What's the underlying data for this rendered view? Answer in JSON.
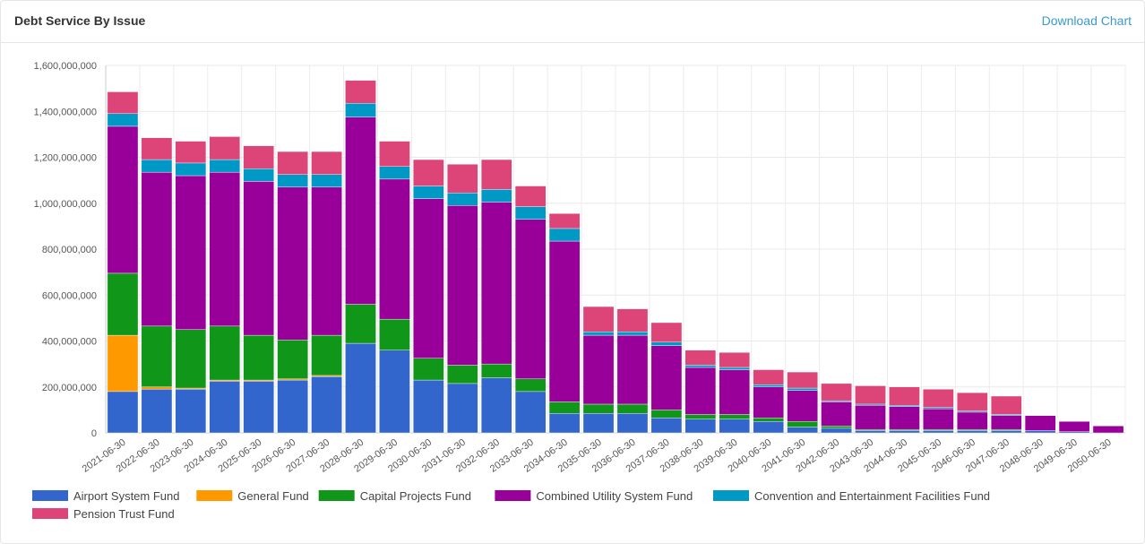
{
  "header": {
    "title": "Debt Service By Issue",
    "download_label": "Download Chart"
  },
  "chart_data": {
    "type": "bar",
    "stacked": true,
    "title": "Debt Service By Issue",
    "xlabel": "",
    "ylabel": "",
    "ylim": [
      0,
      1600000000
    ],
    "yticks": [
      0,
      200000000,
      400000000,
      600000000,
      800000000,
      1000000000,
      1200000000,
      1400000000,
      1600000000
    ],
    "ytick_labels": [
      "0",
      "200,000,000",
      "400,000,000",
      "600,000,000",
      "800,000,000",
      "1,000,000,000",
      "1,200,000,000",
      "1,400,000,000",
      "1,600,000,000"
    ],
    "grid": true,
    "legend_position": "bottom",
    "categories": [
      "2021-06-30",
      "2022-06-30",
      "2023-06-30",
      "2024-06-30",
      "2025-06-30",
      "2026-06-30",
      "2027-06-30",
      "2028-06-30",
      "2029-06-30",
      "2030-06-30",
      "2031-06-30",
      "2032-06-30",
      "2033-06-30",
      "2034-06-30",
      "2035-06-30",
      "2036-06-30",
      "2037-06-30",
      "2038-06-30",
      "2039-06-30",
      "2040-06-30",
      "2041-06-30",
      "2042-06-30",
      "2043-06-30",
      "2044-06-30",
      "2045-06-30",
      "2046-06-30",
      "2047-06-30",
      "2048-06-30",
      "2049-06-30",
      "2050-06-30"
    ],
    "series": [
      {
        "name": "Airport System Fund",
        "color": "#3366cc",
        "values": [
          180000000,
          190000000,
          190000000,
          225000000,
          225000000,
          230000000,
          245000000,
          390000000,
          360000000,
          230000000,
          215000000,
          240000000,
          180000000,
          85000000,
          85000000,
          85000000,
          65000000,
          60000000,
          60000000,
          50000000,
          25000000,
          20000000,
          10000000,
          10000000,
          10000000,
          10000000,
          10000000,
          10000000,
          5000000,
          0
        ]
      },
      {
        "name": "General Fund",
        "color": "#ff9900",
        "values": [
          245000000,
          10000000,
          5000000,
          5000000,
          5000000,
          5000000,
          5000000,
          0,
          0,
          0,
          0,
          0,
          0,
          0,
          0,
          0,
          0,
          0,
          0,
          0,
          0,
          0,
          0,
          0,
          0,
          0,
          0,
          0,
          0,
          0
        ]
      },
      {
        "name": "Capital Projects Fund",
        "color": "#109618",
        "values": [
          270000000,
          265000000,
          255000000,
          235000000,
          195000000,
          170000000,
          175000000,
          170000000,
          135000000,
          95000000,
          80000000,
          60000000,
          55000000,
          50000000,
          40000000,
          40000000,
          35000000,
          20000000,
          20000000,
          15000000,
          25000000,
          10000000,
          5000000,
          5000000,
          5000000,
          5000000,
          5000000,
          0,
          0,
          0
        ]
      },
      {
        "name": "Combined Utility System Fund",
        "color": "#990099",
        "values": [
          640000000,
          670000000,
          670000000,
          670000000,
          670000000,
          665000000,
          645000000,
          815000000,
          610000000,
          695000000,
          695000000,
          705000000,
          695000000,
          700000000,
          300000000,
          300000000,
          280000000,
          205000000,
          195000000,
          135000000,
          135000000,
          105000000,
          105000000,
          100000000,
          90000000,
          75000000,
          60000000,
          65000000,
          45000000,
          30000000
        ]
      },
      {
        "name": "Convention and Entertainment Facilities Fund",
        "color": "#0099c6",
        "values": [
          55000000,
          55000000,
          55000000,
          55000000,
          55000000,
          55000000,
          55000000,
          60000000,
          55000000,
          55000000,
          55000000,
          55000000,
          55000000,
          55000000,
          15000000,
          15000000,
          15000000,
          10000000,
          10000000,
          10000000,
          10000000,
          5000000,
          5000000,
          5000000,
          5000000,
          5000000,
          5000000,
          0,
          0,
          0
        ]
      },
      {
        "name": "Pension Trust Fund",
        "color": "#dd4477",
        "values": [
          95000000,
          95000000,
          95000000,
          100000000,
          100000000,
          100000000,
          100000000,
          100000000,
          110000000,
          115000000,
          125000000,
          130000000,
          90000000,
          65000000,
          110000000,
          100000000,
          85000000,
          65000000,
          65000000,
          65000000,
          70000000,
          75000000,
          80000000,
          80000000,
          80000000,
          80000000,
          80000000,
          0,
          0,
          0
        ]
      }
    ]
  }
}
